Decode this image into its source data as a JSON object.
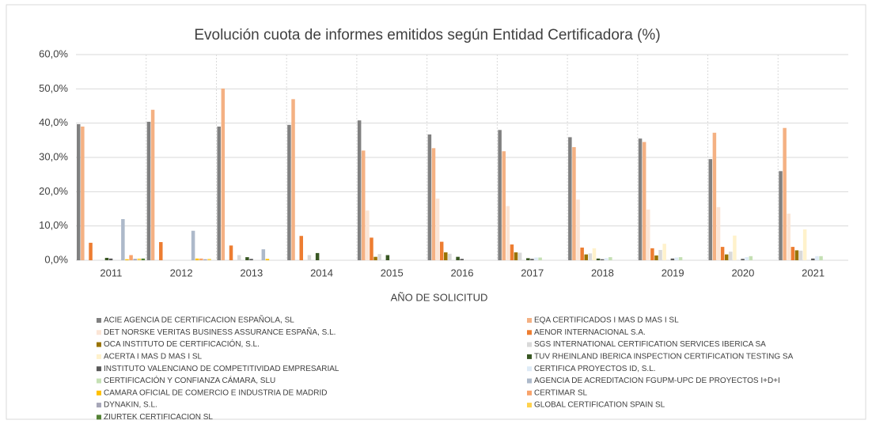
{
  "chart_data": {
    "type": "bar",
    "title": "Evolución cuota de informes emitidos según Entidad Certificadora (%)",
    "x_label": "AÑO DE SOLICITUD",
    "categories": [
      "2011",
      "2012",
      "2013",
      "2014",
      "2015",
      "2016",
      "2017",
      "2018",
      "2019",
      "2020",
      "2021"
    ],
    "ylim": [
      0,
      60
    ],
    "yticks": [
      {
        "value": 0,
        "label": "0,0%"
      },
      {
        "value": 10,
        "label": "10,0%"
      },
      {
        "value": 20,
        "label": "20,0%"
      },
      {
        "value": 30,
        "label": "30,0%"
      },
      {
        "value": 40,
        "label": "40,0%"
      },
      {
        "value": 50,
        "label": "50,0%"
      },
      {
        "value": 60,
        "label": "60,0%"
      }
    ],
    "grid": true,
    "legend": "bottom",
    "series": [
      {
        "name": "ACIE AGENCIA DE CERTIFICACION ESPAÑOLA, SL",
        "color": "#808080",
        "values": [
          39.7,
          40.4,
          39,
          39.5,
          40.8,
          36.7,
          38,
          35.9,
          35.5,
          29.5,
          26
        ]
      },
      {
        "name": "EQA CERTIFICADOS I MAS D MAS I SL",
        "color": "#f4b183",
        "values": [
          39,
          43.9,
          50.1,
          47,
          32,
          32.7,
          31.8,
          33,
          34.5,
          37.2,
          38.6
        ]
      },
      {
        "name": "DET NORSKE VERITAS BUSINESS ASSURANCE ESPAÑA, S.L.",
        "color": "#fbe5d6",
        "values": [
          0,
          0,
          0,
          0,
          14.5,
          18,
          15.8,
          17.7,
          14.8,
          15.5,
          13.6
        ]
      },
      {
        "name": "AENOR INTERNACIONAL S.A.",
        "color": "#ed7d31",
        "values": [
          5.1,
          5.3,
          4.3,
          7.1,
          6.6,
          5.4,
          4.6,
          3.7,
          3.5,
          3.9,
          3.9
        ]
      },
      {
        "name": "OCA INSTITUTO DE CERTIFICACIÓN, S.L.",
        "color": "#997300",
        "values": [
          0,
          0,
          0,
          0,
          1,
          2.3,
          2.3,
          1.7,
          1.4,
          1.7,
          2.9
        ]
      },
      {
        "name": "SGS INTERNATIONAL CERTIFICATION SERVICES IBERICA SA",
        "color": "#d9d9d9",
        "values": [
          0,
          0,
          1.5,
          1.5,
          1.8,
          1.9,
          2.2,
          2,
          3,
          2.5,
          2.8
        ]
      },
      {
        "name": "ACERTA I MAS D MAS I SL",
        "color": "#fff2cc",
        "values": [
          0,
          0,
          0,
          0,
          0,
          0,
          0,
          3.5,
          4.8,
          7.2,
          9
        ]
      },
      {
        "name": "TUV RHEINLAND IBERICA INSPECTION CERTIFICATION TESTING SA",
        "color": "#385723",
        "values": [
          0.7,
          0,
          0.9,
          2.1,
          1.5,
          1,
          0.6,
          0.5,
          0,
          0,
          0
        ]
      },
      {
        "name": "INSTITUTO VALENCIANO DE COMPETITIVIDAD EMPRESARIAL",
        "color": "#595959",
        "values": [
          0.5,
          0,
          0.4,
          0,
          0,
          0.4,
          0.4,
          0.3,
          0.5,
          0.4,
          0.5
        ]
      },
      {
        "name": "CERTIFICA PROYECTOS ID, S.L.",
        "color": "#deebf7",
        "values": [
          0,
          0,
          0,
          0,
          0,
          0,
          0.8,
          0.6,
          0.8,
          0.9,
          1.2
        ]
      },
      {
        "name": "CERTIFICACIÓN Y CONFIANZA CÁMARA, SLU",
        "color": "#c5e0b4",
        "values": [
          0,
          0,
          0,
          0,
          0,
          0,
          0.8,
          0.9,
          0.9,
          1.2,
          1.2
        ]
      },
      {
        "name": "AGENCIA DE ACREDITACION FGUPM-UPC DE PROYECTOS I+D+I",
        "color": "#adb9ca",
        "values": [
          12,
          8.6,
          3.2,
          0,
          0,
          0,
          0,
          0,
          0,
          0,
          0
        ]
      },
      {
        "name": "CAMARA OFICIAL DE COMERCIO E INDUSTRIA DE MADRID",
        "color": "#ffc000",
        "values": [
          0.3,
          0.5,
          0.4,
          0,
          0,
          0,
          0,
          0,
          0,
          0,
          0
        ]
      },
      {
        "name": "CERTIMAR SL",
        "color": "#f8a36b",
        "values": [
          1.5,
          0.5,
          0,
          0,
          0,
          0,
          0,
          0,
          0,
          0,
          0
        ]
      },
      {
        "name": "DYNAKIN, S.L.",
        "color": "#a6a6b8",
        "values": [
          0.4,
          0.3,
          0,
          0,
          0,
          0,
          0,
          0,
          0,
          0,
          0
        ]
      },
      {
        "name": "GLOBAL CERTIFICATION SPAIN SL",
        "color": "#ffd24d",
        "values": [
          0.5,
          0.4,
          0,
          0,
          0,
          0,
          0,
          0,
          0,
          0,
          0
        ]
      },
      {
        "name": "ZIURTEK CERTIFICACION SL",
        "color": "#548235",
        "values": [
          0.5,
          0,
          0,
          0,
          0,
          0,
          0,
          0,
          0,
          0,
          0
        ]
      }
    ]
  }
}
